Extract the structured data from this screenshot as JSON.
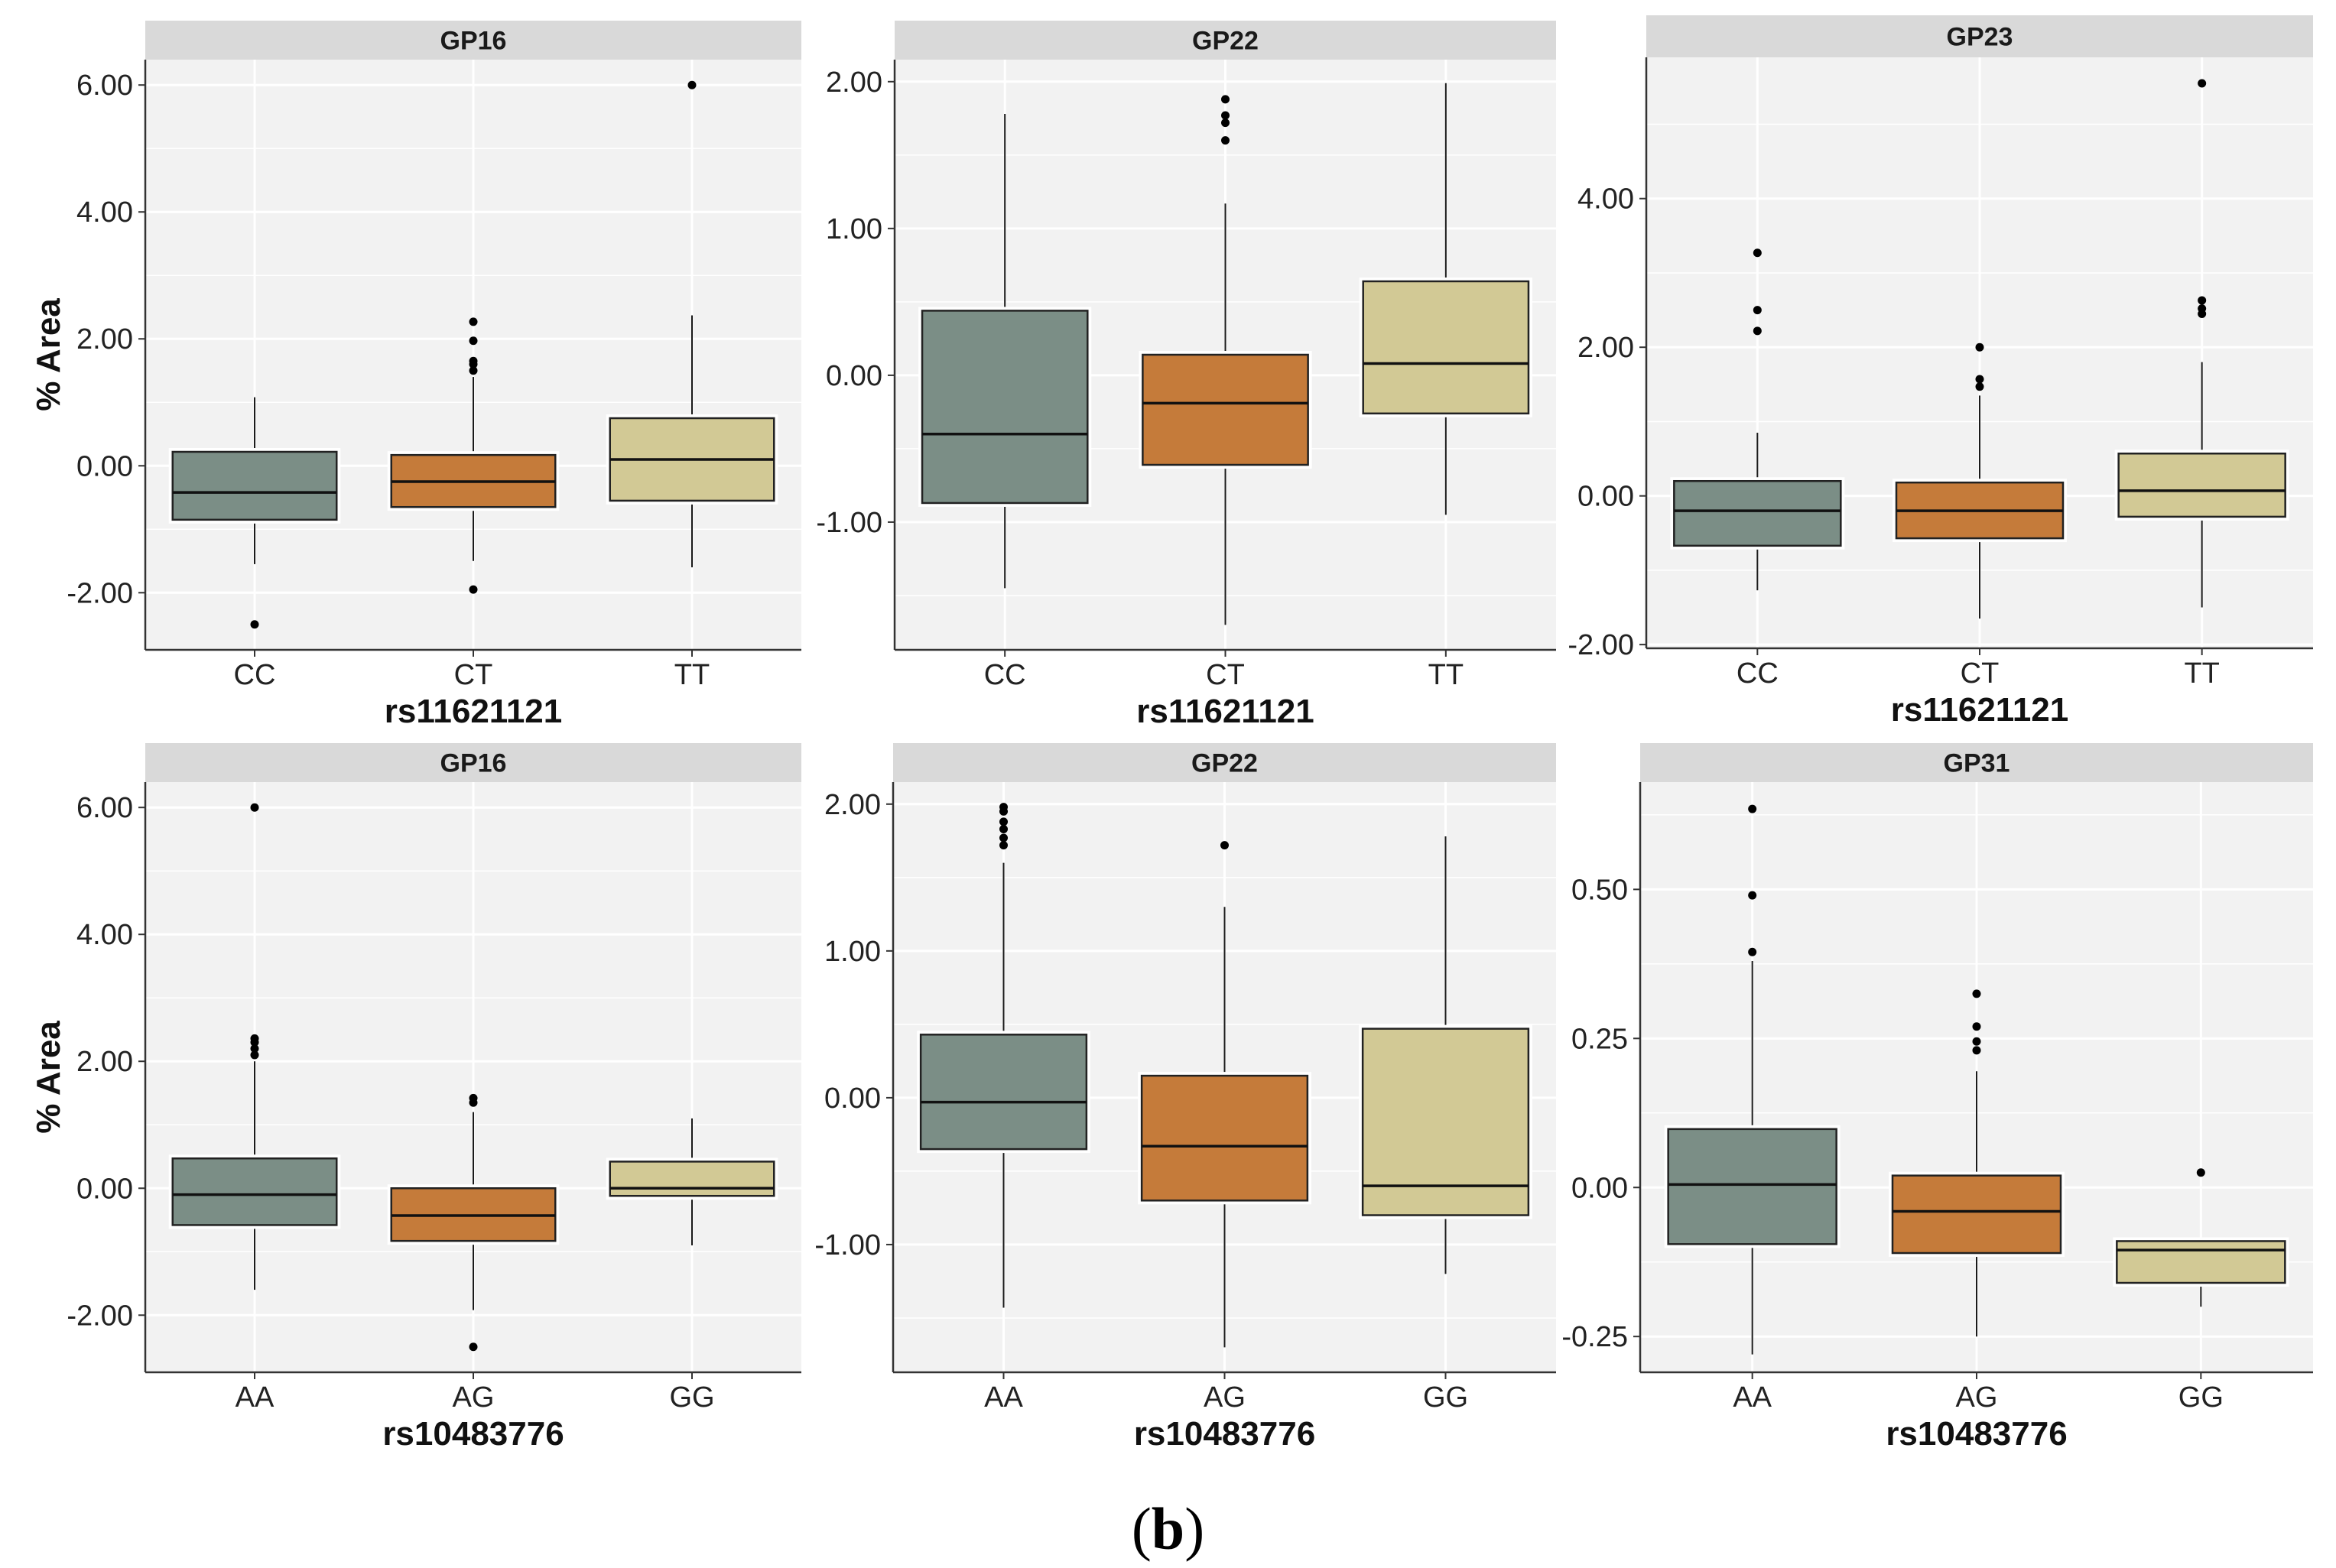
{
  "colors": {
    "genotype_1": "#7b8e86",
    "genotype_2": "#c57b3a",
    "genotype_3": "#d2c995",
    "panel_background": "#f2f2f2",
    "grid": "#ffffff",
    "strip_background": "#d9d9d9"
  },
  "caption": {
    "open": "(",
    "letter": "b",
    "close": ")"
  },
  "chart_data": [
    {
      "type": "boxplot",
      "title": "GP16",
      "xlabel": "rs11621121",
      "ylabel": "% Area",
      "categories": [
        "CC",
        "CT",
        "TT"
      ],
      "ylim": [
        -2.9,
        6.4
      ],
      "yticks": [
        -2,
        0,
        2,
        4,
        6
      ],
      "ytick_labels": [
        "-2.00",
        "0.00",
        "2.00",
        "4.00",
        "6.00"
      ],
      "boxes": [
        {
          "category": "CC",
          "lower_whisker": -1.55,
          "q1": -0.85,
          "median": -0.42,
          "q3": 0.22,
          "upper_whisker": 1.08,
          "outliers": [
            -2.5
          ]
        },
        {
          "category": "CT",
          "lower_whisker": -1.5,
          "q1": -0.65,
          "median": -0.25,
          "q3": 0.17,
          "upper_whisker": 1.4,
          "outliers": [
            -1.95,
            1.5,
            1.6,
            1.65,
            1.97,
            2.27
          ]
        },
        {
          "category": "TT",
          "lower_whisker": -1.6,
          "q1": -0.55,
          "median": 0.1,
          "q3": 0.75,
          "upper_whisker": 2.37,
          "outliers": [
            6.0
          ]
        }
      ]
    },
    {
      "type": "boxplot",
      "title": "GP22",
      "xlabel": "rs11621121",
      "ylabel": "",
      "categories": [
        "CC",
        "CT",
        "TT"
      ],
      "ylim": [
        -1.87,
        2.15
      ],
      "yticks": [
        -1,
        0,
        1,
        2
      ],
      "ytick_labels": [
        "-1.00",
        "0.00",
        "1.00",
        "2.00"
      ],
      "boxes": [
        {
          "category": "CC",
          "lower_whisker": -1.45,
          "q1": -0.87,
          "median": -0.4,
          "q3": 0.44,
          "upper_whisker": 1.78,
          "outliers": []
        },
        {
          "category": "CT",
          "lower_whisker": -1.7,
          "q1": -0.61,
          "median": -0.19,
          "q3": 0.14,
          "upper_whisker": 1.17,
          "outliers": [
            1.6,
            1.72,
            1.77,
            1.88
          ]
        },
        {
          "category": "TT",
          "lower_whisker": -0.95,
          "q1": -0.26,
          "median": 0.08,
          "q3": 0.64,
          "upper_whisker": 1.99,
          "outliers": []
        }
      ]
    },
    {
      "type": "boxplot",
      "title": "GP23",
      "xlabel": "rs11621121",
      "ylabel": "",
      "categories": [
        "CC",
        "CT",
        "TT"
      ],
      "ylim": [
        -2.05,
        5.9
      ],
      "yticks": [
        -2,
        0,
        2,
        4
      ],
      "ytick_labels": [
        "-2.00",
        "0.00",
        "2.00",
        "4.00"
      ],
      "boxes": [
        {
          "category": "CC",
          "lower_whisker": -1.27,
          "q1": -0.67,
          "median": -0.2,
          "q3": 0.2,
          "upper_whisker": 0.85,
          "outliers": [
            2.22,
            2.5,
            3.27
          ]
        },
        {
          "category": "CT",
          "lower_whisker": -1.65,
          "q1": -0.57,
          "median": -0.2,
          "q3": 0.18,
          "upper_whisker": 1.35,
          "outliers": [
            1.47,
            1.57,
            2.0
          ]
        },
        {
          "category": "TT",
          "lower_whisker": -1.5,
          "q1": -0.28,
          "median": 0.07,
          "q3": 0.57,
          "upper_whisker": 1.8,
          "outliers": [
            2.45,
            2.52,
            2.63,
            5.55
          ]
        }
      ]
    },
    {
      "type": "boxplot",
      "title": "GP16",
      "xlabel": "rs10483776",
      "ylabel": "% Area",
      "categories": [
        "AA",
        "AG",
        "GG"
      ],
      "ylim": [
        -2.9,
        6.4
      ],
      "yticks": [
        -2,
        0,
        2,
        4,
        6
      ],
      "ytick_labels": [
        "-2.00",
        "0.00",
        "2.00",
        "4.00",
        "6.00"
      ],
      "boxes": [
        {
          "category": "AA",
          "lower_whisker": -1.6,
          "q1": -0.58,
          "median": -0.1,
          "q3": 0.47,
          "upper_whisker": 2.0,
          "outliers": [
            2.1,
            2.2,
            2.3,
            2.36,
            6.0
          ]
        },
        {
          "category": "AG",
          "lower_whisker": -1.92,
          "q1": -0.83,
          "median": -0.43,
          "q3": 0.0,
          "upper_whisker": 1.2,
          "outliers": [
            -2.5,
            1.35,
            1.42
          ]
        },
        {
          "category": "GG",
          "lower_whisker": -0.9,
          "q1": -0.12,
          "median": 0.0,
          "q3": 0.42,
          "upper_whisker": 1.1,
          "outliers": []
        }
      ]
    },
    {
      "type": "boxplot",
      "title": "GP22",
      "xlabel": "rs10483776",
      "ylabel": "",
      "categories": [
        "AA",
        "AG",
        "GG"
      ],
      "ylim": [
        -1.87,
        2.15
      ],
      "yticks": [
        -1,
        0,
        1,
        2
      ],
      "ytick_labels": [
        "-1.00",
        "0.00",
        "1.00",
        "2.00"
      ],
      "boxes": [
        {
          "category": "AA",
          "lower_whisker": -1.43,
          "q1": -0.35,
          "median": -0.03,
          "q3": 0.43,
          "upper_whisker": 1.6,
          "outliers": [
            1.72,
            1.77,
            1.83,
            1.88,
            1.95,
            1.98
          ]
        },
        {
          "category": "AG",
          "lower_whisker": -1.7,
          "q1": -0.7,
          "median": -0.33,
          "q3": 0.15,
          "upper_whisker": 1.3,
          "outliers": [
            1.72
          ]
        },
        {
          "category": "GG",
          "lower_whisker": -1.2,
          "q1": -0.8,
          "median": -0.6,
          "q3": 0.47,
          "upper_whisker": 1.78,
          "outliers": []
        }
      ]
    },
    {
      "type": "boxplot",
      "title": "GP31",
      "xlabel": "rs10483776",
      "ylabel": "",
      "categories": [
        "AA",
        "AG",
        "GG"
      ],
      "ylim": [
        -0.31,
        0.68
      ],
      "yticks": [
        -0.25,
        0,
        0.25,
        0.5
      ],
      "ytick_labels": [
        "-0.25",
        "0.00",
        "0.25",
        "0.50"
      ],
      "boxes": [
        {
          "category": "AA",
          "lower_whisker": -0.28,
          "q1": -0.095,
          "median": 0.005,
          "q3": 0.098,
          "upper_whisker": 0.38,
          "outliers": [
            0.395,
            0.49,
            0.635
          ]
        },
        {
          "category": "AG",
          "lower_whisker": -0.25,
          "q1": -0.11,
          "median": -0.04,
          "q3": 0.02,
          "upper_whisker": 0.195,
          "outliers": [
            0.23,
            0.245,
            0.27,
            0.325
          ]
        },
        {
          "category": "GG",
          "lower_whisker": -0.2,
          "q1": -0.16,
          "median": -0.105,
          "q3": -0.09,
          "upper_whisker": -0.085,
          "outliers": [
            0.025
          ]
        }
      ]
    }
  ]
}
